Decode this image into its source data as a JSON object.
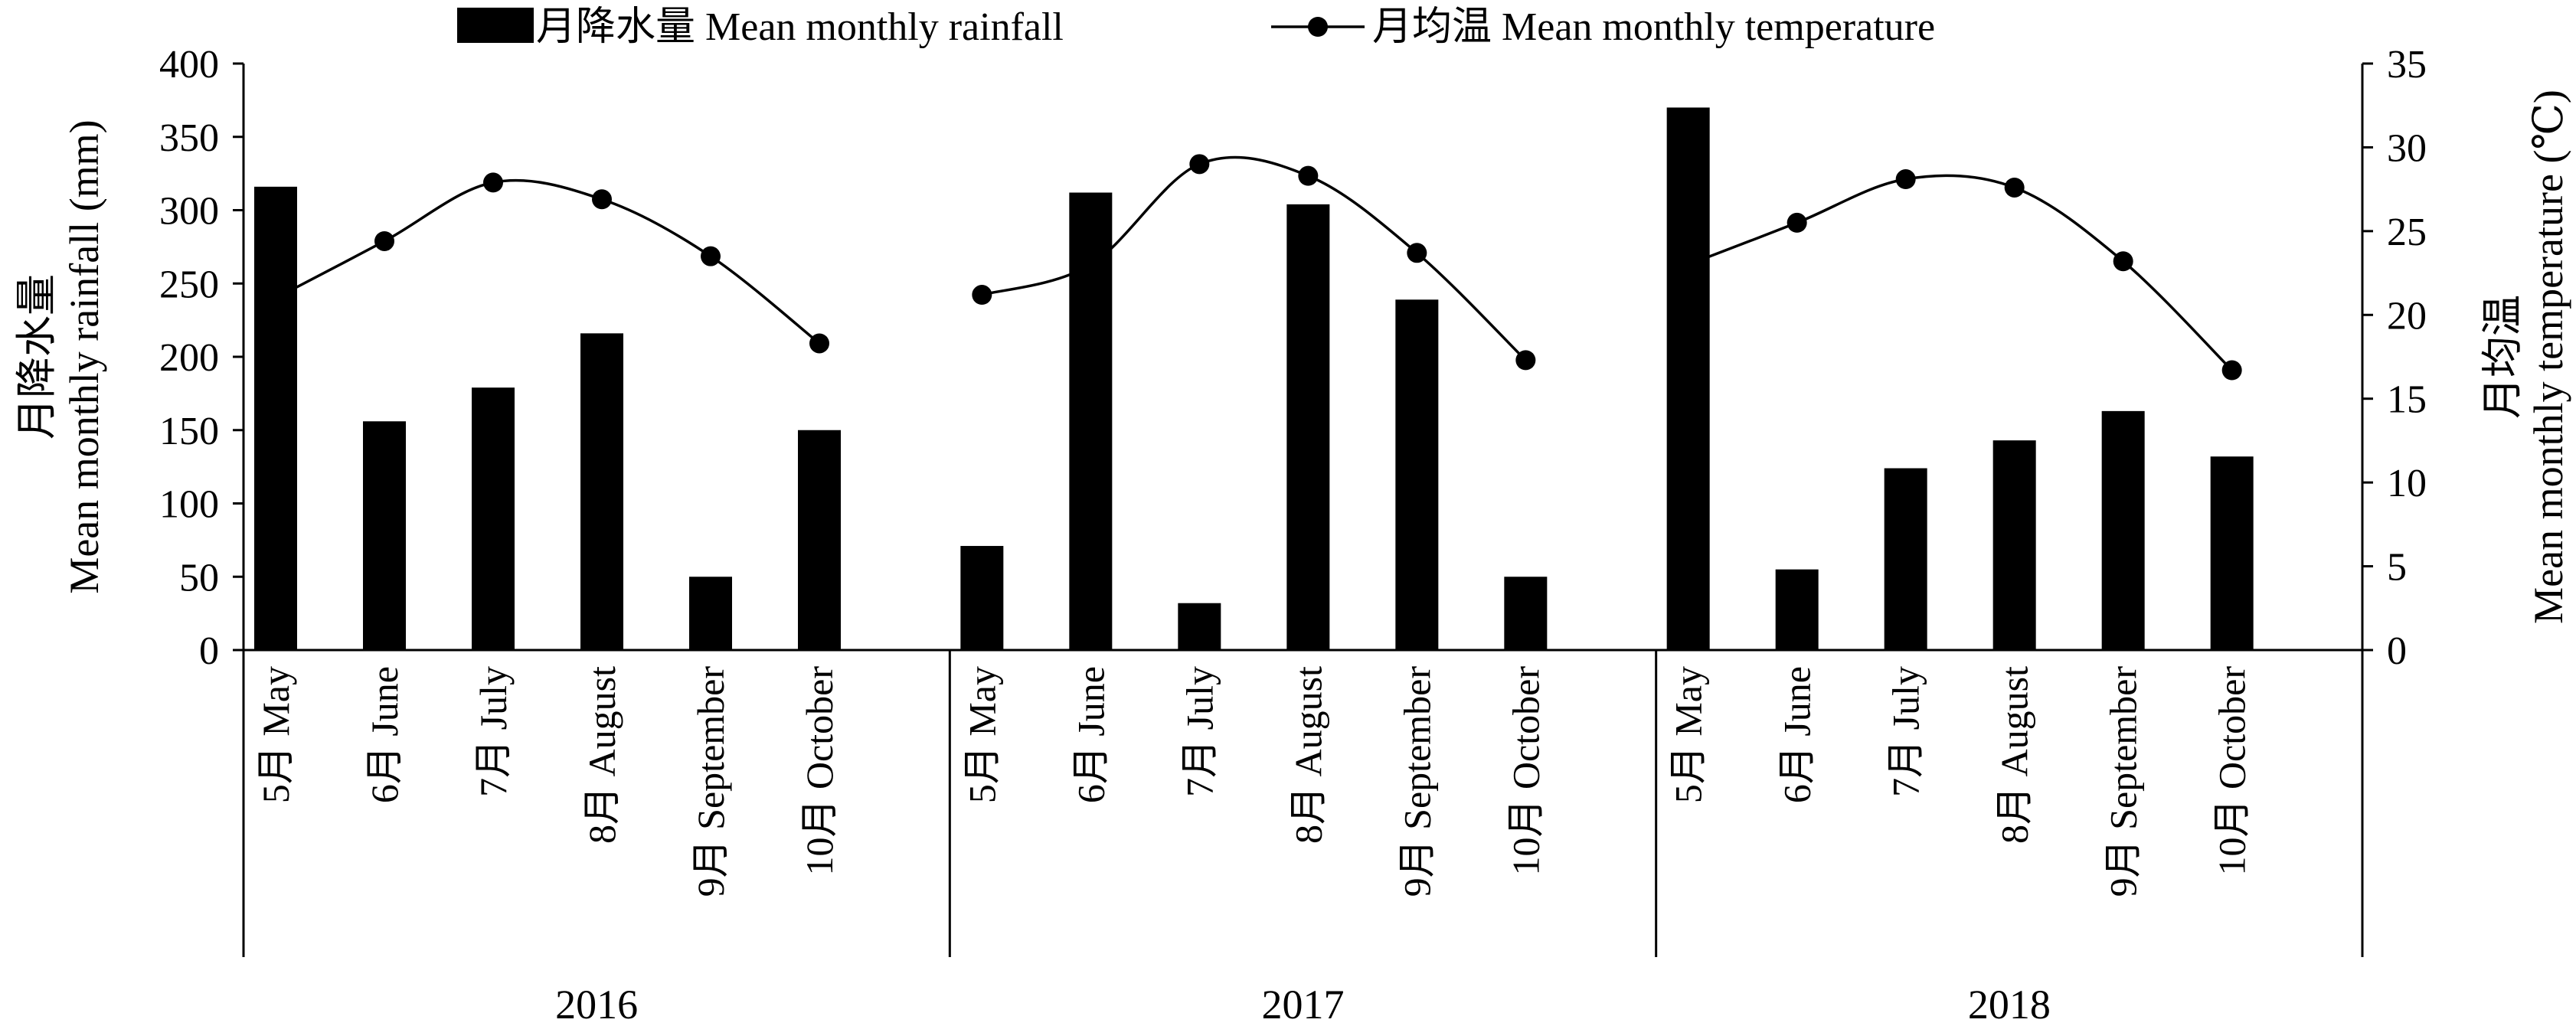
{
  "chart_data": {
    "type": "bar",
    "title": "",
    "legend": {
      "position": "top",
      "rainfall_label": "月降水量 Mean monthly rainfall",
      "temperature_label": "月均温 Mean monthly temperature"
    },
    "y_left": {
      "label_cn": "月降水量",
      "label_en": "Mean monthly rainfall (mm)",
      "range": [
        0,
        400
      ],
      "ticks": [
        0,
        50,
        100,
        150,
        200,
        250,
        300,
        350,
        400
      ],
      "tick_labels": [
        "0",
        "50",
        "100",
        "150",
        "200",
        "250",
        "300",
        "350",
        "400"
      ]
    },
    "y_right": {
      "label_cn": "月均温",
      "label_en": "Mean monthly temperature (℃)",
      "range": [
        0,
        35
      ],
      "ticks": [
        0,
        5,
        10,
        15,
        20,
        25,
        30,
        35
      ],
      "tick_labels": [
        "0",
        "5",
        "10",
        "15",
        "20",
        "25",
        "30",
        "35"
      ]
    },
    "grid": false,
    "groups": [
      {
        "year": "2016",
        "categories": [
          "5月 May",
          "6月 June",
          "7月 July",
          "8月 August",
          "9月 September",
          "10月 October"
        ],
        "rainfall": [
          316,
          156,
          179,
          216,
          50,
          150
        ],
        "temperature": [
          21.0,
          24.4,
          27.9,
          26.9,
          23.5,
          18.3
        ]
      },
      {
        "year": "2017",
        "categories": [
          "5月 May",
          "6月 June",
          "7月 July",
          "8月 August",
          "9月 September",
          "10月 October"
        ],
        "rainfall": [
          71,
          312,
          32,
          304,
          239,
          50
        ],
        "temperature": [
          21.2,
          23.0,
          29.0,
          28.3,
          23.7,
          17.3
        ]
      },
      {
        "year": "2018",
        "categories": [
          "5月 May",
          "6月 June",
          "7月 July",
          "8月 August",
          "9月 September",
          "10月 October"
        ],
        "rainfall": [
          370,
          55,
          124,
          143,
          163,
          132
        ],
        "temperature": [
          23.0,
          25.5,
          28.1,
          27.6,
          23.2,
          16.7
        ]
      }
    ],
    "series": [
      {
        "name": "月降水量 Mean monthly rainfall",
        "type": "bar",
        "axis": "left"
      },
      {
        "name": "月均温 Mean monthly temperature",
        "type": "line",
        "axis": "right"
      }
    ]
  },
  "colors": {
    "bar": "#000000",
    "line": "#000000",
    "axis": "#000000"
  }
}
